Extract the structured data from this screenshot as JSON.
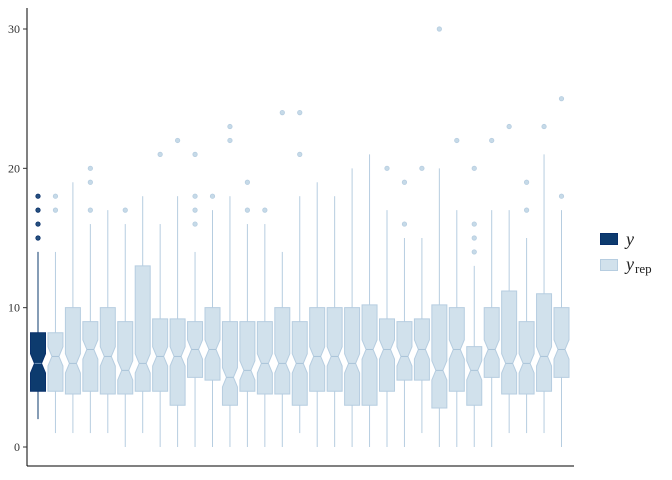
{
  "chart_data": {
    "type": "boxplot",
    "notched": true,
    "ylim": [
      0,
      31
    ],
    "yticks": [
      0,
      10,
      20,
      30
    ],
    "grid": false,
    "legend_placement": "right",
    "legend": [
      {
        "name": "y",
        "color": "#08306b",
        "fill": "#0d3b6e"
      },
      {
        "name": "y",
        "subscript": "rep",
        "color": "#b6cde0",
        "fill": "#d1e1ec"
      }
    ],
    "series": [
      {
        "name": "y",
        "boxes": [
          {
            "min": 2,
            "q1": 4,
            "median": 6,
            "q3": 8.2,
            "max": 14,
            "outliers": [
              15,
              16,
              17,
              18
            ]
          }
        ]
      },
      {
        "name": "y_rep",
        "boxes": [
          {
            "min": 1,
            "q1": 4,
            "median": 6.5,
            "q3": 8.2,
            "max": 14,
            "outliers": [
              17,
              18
            ]
          },
          {
            "min": 1,
            "q1": 3.8,
            "median": 6,
            "q3": 10,
            "max": 19,
            "outliers": []
          },
          {
            "min": 1,
            "q1": 4,
            "median": 7,
            "q3": 9,
            "max": 16,
            "outliers": [
              17,
              19,
              20
            ]
          },
          {
            "min": 1,
            "q1": 3.8,
            "median": 6.5,
            "q3": 10,
            "max": 17,
            "outliers": []
          },
          {
            "min": 0,
            "q1": 3.8,
            "median": 5.5,
            "q3": 9,
            "max": 16,
            "outliers": [
              17
            ]
          },
          {
            "min": 1,
            "q1": 4,
            "median": 6,
            "q3": 13,
            "max": 18,
            "outliers": []
          },
          {
            "min": 0,
            "q1": 4,
            "median": 6.5,
            "q3": 9.2,
            "max": 16,
            "outliers": [
              21
            ]
          },
          {
            "min": 0,
            "q1": 3,
            "median": 6.5,
            "q3": 9.2,
            "max": 18,
            "outliers": [
              22
            ]
          },
          {
            "min": 0,
            "q1": 5,
            "median": 7,
            "q3": 9,
            "max": 14,
            "outliers": [
              16,
              17,
              18,
              21
            ]
          },
          {
            "min": 0,
            "q1": 4.8,
            "median": 7,
            "q3": 10,
            "max": 17,
            "outliers": [
              18
            ]
          },
          {
            "min": 0,
            "q1": 3,
            "median": 5,
            "q3": 9,
            "max": 18,
            "outliers": [
              22,
              23
            ]
          },
          {
            "min": 0,
            "q1": 4,
            "median": 5.5,
            "q3": 9,
            "max": 16,
            "outliers": [
              17,
              19
            ]
          },
          {
            "min": 0,
            "q1": 3.8,
            "median": 6,
            "q3": 9,
            "max": 16,
            "outliers": [
              17
            ]
          },
          {
            "min": 0,
            "q1": 3.8,
            "median": 6,
            "q3": 10,
            "max": 14,
            "outliers": [
              24
            ]
          },
          {
            "min": 1,
            "q1": 3,
            "median": 6,
            "q3": 9,
            "max": 18,
            "outliers": [
              21,
              24
            ]
          },
          {
            "min": 0,
            "q1": 4,
            "median": 6.5,
            "q3": 10,
            "max": 19,
            "outliers": []
          },
          {
            "min": 0,
            "q1": 4,
            "median": 6.5,
            "q3": 10,
            "max": 18,
            "outliers": []
          },
          {
            "min": 0,
            "q1": 3,
            "median": 6,
            "q3": 10,
            "max": 20,
            "outliers": []
          },
          {
            "min": 0,
            "q1": 3,
            "median": 7,
            "q3": 10.2,
            "max": 21,
            "outliers": []
          },
          {
            "min": 0,
            "q1": 4,
            "median": 7,
            "q3": 9.2,
            "max": 17,
            "outliers": [
              20
            ]
          },
          {
            "min": 0,
            "q1": 4.8,
            "median": 6.5,
            "q3": 9,
            "max": 15,
            "outliers": [
              16,
              19
            ]
          },
          {
            "min": 1,
            "q1": 4.8,
            "median": 7,
            "q3": 9.2,
            "max": 15,
            "outliers": [
              20
            ]
          },
          {
            "min": 0,
            "q1": 2.8,
            "median": 5.5,
            "q3": 10.2,
            "max": 20,
            "outliers": [
              30
            ]
          },
          {
            "min": 0,
            "q1": 4,
            "median": 7,
            "q3": 10,
            "max": 17,
            "outliers": [
              22
            ]
          },
          {
            "min": 0,
            "q1": 3,
            "median": 5.5,
            "q3": 7.2,
            "max": 13,
            "outliers": [
              14,
              15,
              16,
              20
            ]
          },
          {
            "min": 0,
            "q1": 5,
            "median": 7,
            "q3": 10,
            "max": 17,
            "outliers": [
              22
            ]
          },
          {
            "min": 1,
            "q1": 3.8,
            "median": 6,
            "q3": 11.2,
            "max": 17,
            "outliers": [
              23
            ]
          },
          {
            "min": 1,
            "q1": 3.8,
            "median": 6,
            "q3": 9,
            "max": 15,
            "outliers": [
              17,
              19
            ]
          },
          {
            "min": 1,
            "q1": 4,
            "median": 6.5,
            "q3": 11,
            "max": 21,
            "outliers": [
              23
            ]
          },
          {
            "min": 0,
            "q1": 5,
            "median": 7,
            "q3": 10,
            "max": 17,
            "outliers": [
              18,
              25
            ]
          }
        ]
      }
    ]
  }
}
